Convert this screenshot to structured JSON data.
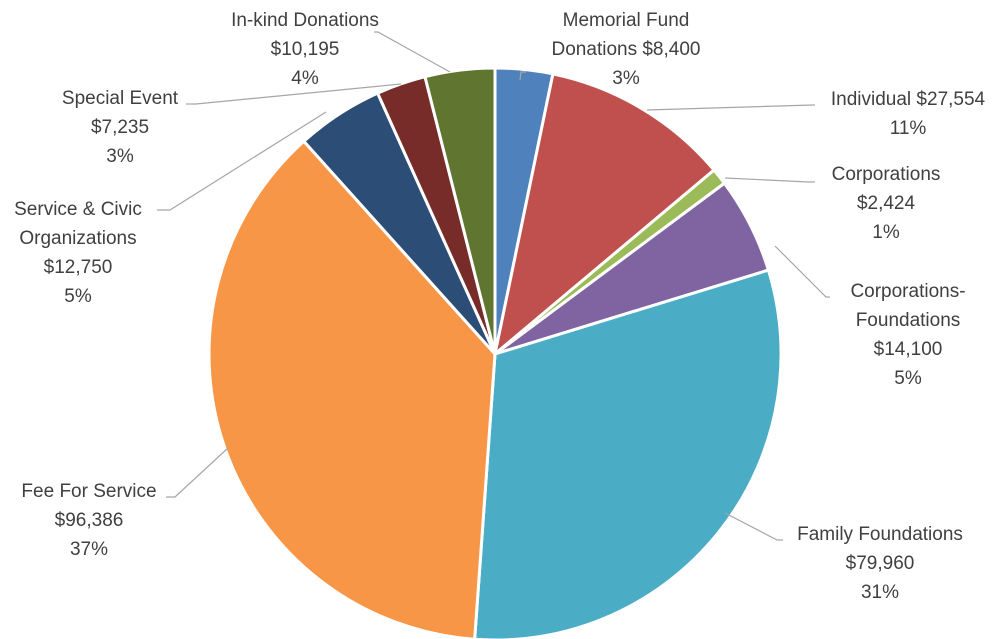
{
  "chart_data": {
    "type": "pie",
    "title": "",
    "legend": "none",
    "currency": "$",
    "slices": [
      {
        "label": "Memorial Fund Donations",
        "value": 8400,
        "percent": "3%",
        "color": "#4f81bd",
        "label_lines": [
          "Memorial Fund",
          "Donations $8,400",
          "3%"
        ]
      },
      {
        "label": "Individual",
        "value": 27554,
        "percent": "11%",
        "color": "#c0504d",
        "label_lines": [
          "Individual $27,554",
          "11%"
        ]
      },
      {
        "label": "Corporations",
        "value": 2424,
        "percent": "1%",
        "color": "#9bbb59",
        "label_lines": [
          "Corporations",
          "$2,424",
          "1%"
        ]
      },
      {
        "label": "Corporations-Foundations",
        "value": 14100,
        "percent": "5%",
        "color": "#8064a2",
        "label_lines": [
          "Corporations-",
          "Foundations",
          "$14,100",
          "5%"
        ]
      },
      {
        "label": "Family Foundations",
        "value": 79960,
        "percent": "31%",
        "color": "#4bacc6",
        "label_lines": [
          "Family Foundations",
          "$79,960",
          "31%"
        ]
      },
      {
        "label": "Fee For Service",
        "value": 96386,
        "percent": "37%",
        "color": "#f79646",
        "label_lines": [
          "Fee For Service",
          "$96,386",
          "37%"
        ]
      },
      {
        "label": "Service & Civic Organizations",
        "value": 12750,
        "percent": "5%",
        "color": "#2c4d75",
        "label_lines": [
          "Service & Civic",
          "Organizations",
          "$12,750",
          "5%"
        ]
      },
      {
        "label": "Special Event",
        "value": 7235,
        "percent": "3%",
        "color": "#772c2a",
        "label_lines": [
          "Special Event",
          "$7,235",
          "3%"
        ]
      },
      {
        "label": "In-kind Donations",
        "value": 10195,
        "percent": "4%",
        "color": "#5f7530",
        "label_lines": [
          "In-kind Donations",
          "$10,195",
          "4%"
        ]
      }
    ]
  }
}
